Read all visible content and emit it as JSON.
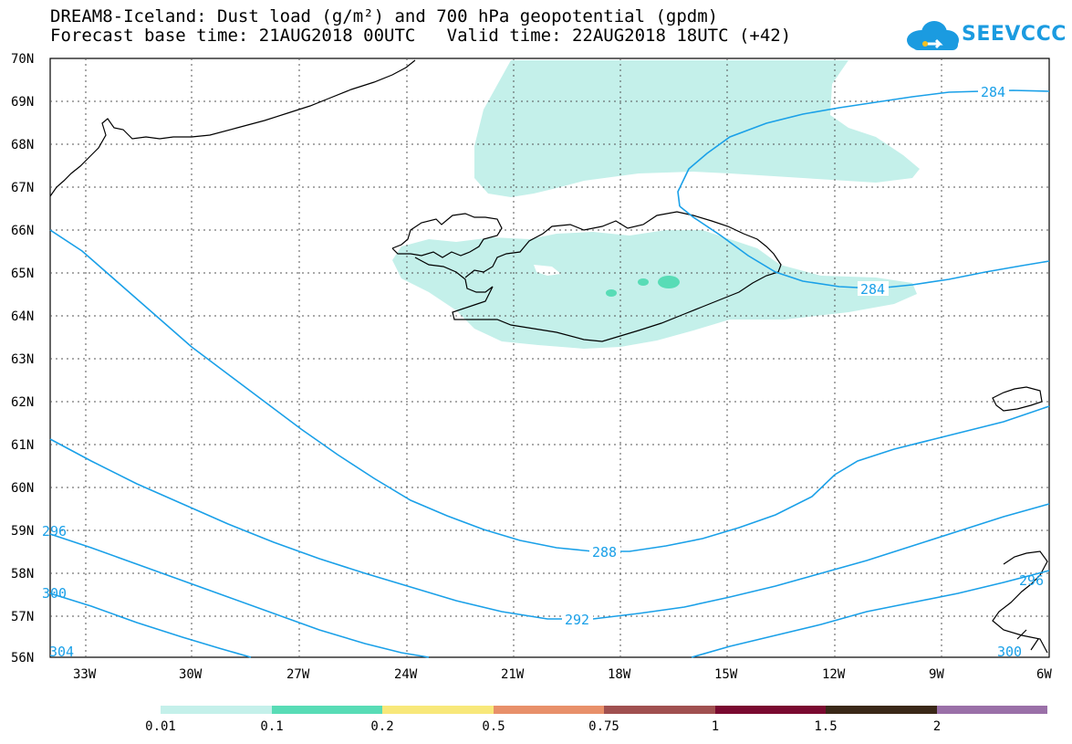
{
  "title": {
    "line1": "DREAM8-Iceland: Dust load (g/m²) and 700 hPa geopotential (gpdm)",
    "line2": "Forecast base time: 21AUG2018 00UTC   Valid time: 22AUG2018 18UTC (+42)"
  },
  "logo": {
    "text": "SEEVCCC",
    "icon": "cloud-icon",
    "color": "#1b9be0"
  },
  "axes": {
    "lat_labels": [
      "70N",
      "69N",
      "68N",
      "67N",
      "66N",
      "65N",
      "64N",
      "63N",
      "62N",
      "61N",
      "60N",
      "59N",
      "58N",
      "57N",
      "56N"
    ],
    "lon_labels": [
      "33W",
      "30W",
      "27W",
      "24W",
      "21W",
      "18W",
      "15W",
      "12W",
      "9W",
      "6W"
    ]
  },
  "contours": {
    "color": "#1aa0e8",
    "labels": [
      "284",
      "284",
      "288",
      "292",
      "296",
      "300",
      "296",
      "300",
      "304"
    ]
  },
  "colorbar": {
    "colors": [
      "#c4f0ea",
      "#58dcb6",
      "#f8e87a",
      "#e8906a",
      "#a05050",
      "#7a0a30",
      "#3a2818",
      "#9a70a8"
    ],
    "labels": [
      "0.01",
      "0.1",
      "0.2",
      "0.5",
      "0.75",
      "1",
      "1.5",
      "2"
    ]
  }
}
